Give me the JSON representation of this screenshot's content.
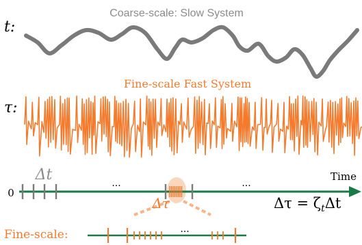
{
  "colors": {
    "slow": "#7a7a7a",
    "fast": "#f47a2c",
    "timeline": "#1a7a45",
    "tick": "#7a7a7a",
    "highlight": "#f7c9a8",
    "text": "#000000"
  },
  "labels": {
    "slow_title": "Coarse-scale: Slow System",
    "fast_title": "Fine-scale Fast System",
    "t_symbol": "t:",
    "tau_symbol": "τ:",
    "delta_t": "Δt",
    "delta_tau": "Δτ",
    "time_axis": "Time",
    "origin": "0",
    "ellipsis_left": "...",
    "ellipsis_right": "...",
    "ellipsis_fine": "...",
    "fine_scale": "Fine-scale:",
    "relation": "Δτ = ζ",
    "relation_subscript": "t",
    "relation_tail": "Δt"
  }
}
